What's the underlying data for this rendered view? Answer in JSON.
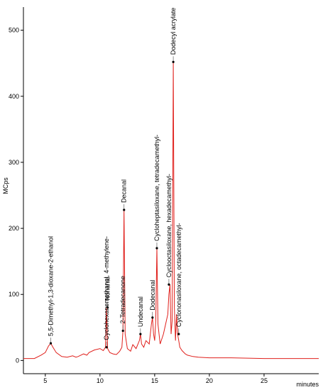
{
  "chart_data": {
    "type": "line",
    "xlabel": "minutes",
    "ylabel": "MCps",
    "xlim": [
      3,
      30
    ],
    "ylim": [
      -20,
      535
    ],
    "x_ticks": [
      5,
      10,
      15,
      20,
      25
    ],
    "y_ticks": [
      0,
      100,
      200,
      300,
      400,
      500
    ],
    "x_tick_labels": [
      "5",
      "10",
      "15",
      "20",
      "25"
    ],
    "y_tick_labels": [
      "0",
      "100",
      "200",
      "300",
      "400",
      "500"
    ],
    "series": [
      {
        "color": "#e0201c",
        "x": [
          3.0,
          4.0,
          4.6,
          5.0,
          5.3,
          5.5,
          5.7,
          6.0,
          6.5,
          7.0,
          7.5,
          7.8,
          8.0,
          8.5,
          8.8,
          9.0,
          9.5,
          10.0,
          10.3,
          10.5,
          10.6,
          10.7,
          10.9,
          11.2,
          11.5,
          11.8,
          12.0,
          12.1,
          12.2,
          12.3,
          12.5,
          12.8,
          13.0,
          13.3,
          13.6,
          13.7,
          13.8,
          14.0,
          14.2,
          14.5,
          14.7,
          14.8,
          14.9,
          15.0,
          15.1,
          15.2,
          15.3,
          15.5,
          15.8,
          16.0,
          16.2,
          16.3,
          16.4,
          16.5,
          16.6,
          16.7,
          16.8,
          16.9,
          17.0,
          17.1,
          17.2,
          17.3,
          17.5,
          17.8,
          18.0,
          18.5,
          19.0,
          20.0,
          22.0,
          25.0,
          28.0,
          30.0
        ],
        "y": [
          3,
          3,
          8,
          12,
          22,
          26,
          20,
          12,
          6,
          5,
          7,
          5,
          6,
          10,
          8,
          12,
          16,
          18,
          15,
          20,
          80,
          18,
          12,
          10,
          9,
          14,
          20,
          45,
          228,
          40,
          18,
          14,
          24,
          18,
          30,
          40,
          25,
          20,
          30,
          25,
          55,
          65,
          40,
          30,
          60,
          170,
          55,
          25,
          40,
          55,
          70,
          100,
          115,
          40,
          60,
          452,
          80,
          30,
          70,
          40,
          30,
          20,
          15,
          10,
          8,
          6,
          5,
          4,
          4,
          3,
          3,
          3
        ]
      }
    ],
    "annotations": [
      {
        "text": "5,5-Dimethyl-1,3-dioxane-2-ethanol",
        "x": 5.5,
        "y": 26
      },
      {
        "text": "Cyclohexanemethanol, 4-methylene-",
        "x": 10.6,
        "y": 20
      },
      {
        "text": "Nonanal",
        "x": 10.7,
        "y": 80
      },
      {
        "text": "2-Tetradecanone",
        "x": 12.1,
        "y": 45
      },
      {
        "text": "Decanal",
        "x": 12.2,
        "y": 228
      },
      {
        "text": "Undecanal",
        "x": 13.7,
        "y": 40
      },
      {
        "text": "Dodecanal",
        "x": 14.8,
        "y": 65
      },
      {
        "text": "Cycloheptasiloxane, tetradecamethyl-",
        "x": 15.2,
        "y": 170
      },
      {
        "text": "Cyclooctasiloxane, hexadecamethyl-",
        "x": 16.3,
        "y": 115
      },
      {
        "text": "Dodecyl acrylate",
        "x": 16.7,
        "y": 452
      },
      {
        "text": "Cyclononasiloxane, octadecamethyl-",
        "x": 17.2,
        "y": 40
      }
    ]
  }
}
